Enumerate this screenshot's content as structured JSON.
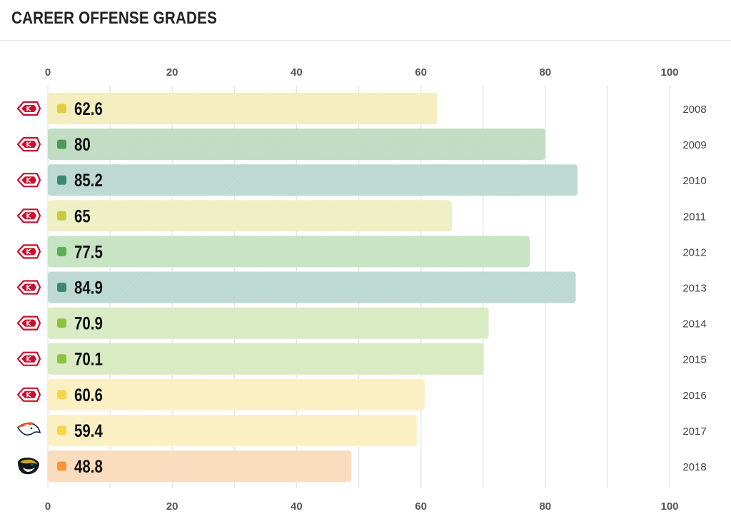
{
  "page": {
    "title": "CAREER OFFENSE GRADES"
  },
  "chart_data": {
    "type": "bar",
    "orientation": "horizontal",
    "title": "CAREER OFFENSE GRADES",
    "xlim": [
      0,
      100
    ],
    "xticks": [
      0,
      20,
      40,
      60,
      80,
      100
    ],
    "grid": true,
    "axis_labels_position": "top-and-bottom",
    "categories": [
      "2008",
      "2009",
      "2010",
      "2011",
      "2012",
      "2013",
      "2014",
      "2015",
      "2016",
      "2017",
      "2018"
    ],
    "values": [
      62.6,
      80,
      85.2,
      65,
      77.5,
      84.9,
      70.9,
      70.1,
      60.6,
      59.4,
      48.8
    ],
    "value_labels": [
      "62.6",
      "80",
      "85.2",
      "65",
      "77.5",
      "84.9",
      "70.9",
      "70.1",
      "60.6",
      "59.4",
      "48.8"
    ],
    "team_icons": [
      "chiefs-logo-icon",
      "chiefs-logo-icon",
      "chiefs-logo-icon",
      "chiefs-logo-icon",
      "chiefs-logo-icon",
      "chiefs-logo-icon",
      "chiefs-logo-icon",
      "chiefs-logo-icon",
      "chiefs-logo-icon",
      "broncos-logo-icon",
      "jaguars-logo-icon"
    ],
    "bar_colors": [
      "#f4edbe",
      "#c0dcc2",
      "#bcd9d1",
      "#eef0c4",
      "#c6e3c2",
      "#bcd9d1",
      "#d8ebc2",
      "#d8ebc2",
      "#fbf0c2",
      "#fbf0c2",
      "#f9dcbd"
    ],
    "dot_colors": [
      "#e2cd43",
      "#4a9c52",
      "#3a8a73",
      "#c2cc3e",
      "#5ab052",
      "#3a8a73",
      "#8cc43e",
      "#8cc43e",
      "#fad54a",
      "#fad54a",
      "#f7963b"
    ]
  }
}
